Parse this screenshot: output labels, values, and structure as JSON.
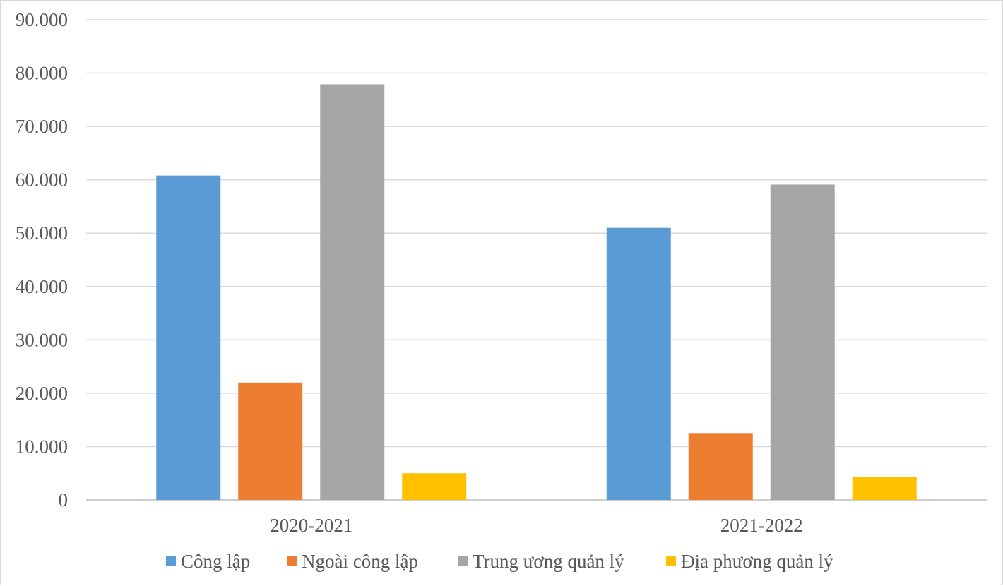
{
  "chart_data": {
    "type": "bar",
    "title": "",
    "xlabel": "",
    "ylabel": "",
    "categories": [
      "2020-2021",
      "2021-2022"
    ],
    "series": [
      {
        "name": "Công lập",
        "values": [
          60800,
          51000
        ],
        "color": "#5b9bd5"
      },
      {
        "name": "Ngoài công lập",
        "values": [
          22000,
          12400
        ],
        "color": "#ed7d31"
      },
      {
        "name": "Trung ương quản lý",
        "values": [
          77900,
          59100
        ],
        "color": "#a5a5a5"
      },
      {
        "name": "Địa phương quản lý",
        "values": [
          5000,
          4300
        ],
        "color": "#ffc000"
      }
    ],
    "ylim": [
      0,
      90000
    ],
    "y_ticks": [
      0,
      10000,
      20000,
      30000,
      40000,
      50000,
      60000,
      70000,
      80000,
      90000
    ],
    "y_tick_labels": [
      "0",
      "10.000",
      "20.000",
      "30.000",
      "40.000",
      "50.000",
      "60.000",
      "70.000",
      "80.000",
      "90.000"
    ],
    "grid": true,
    "legend_position": "bottom"
  }
}
